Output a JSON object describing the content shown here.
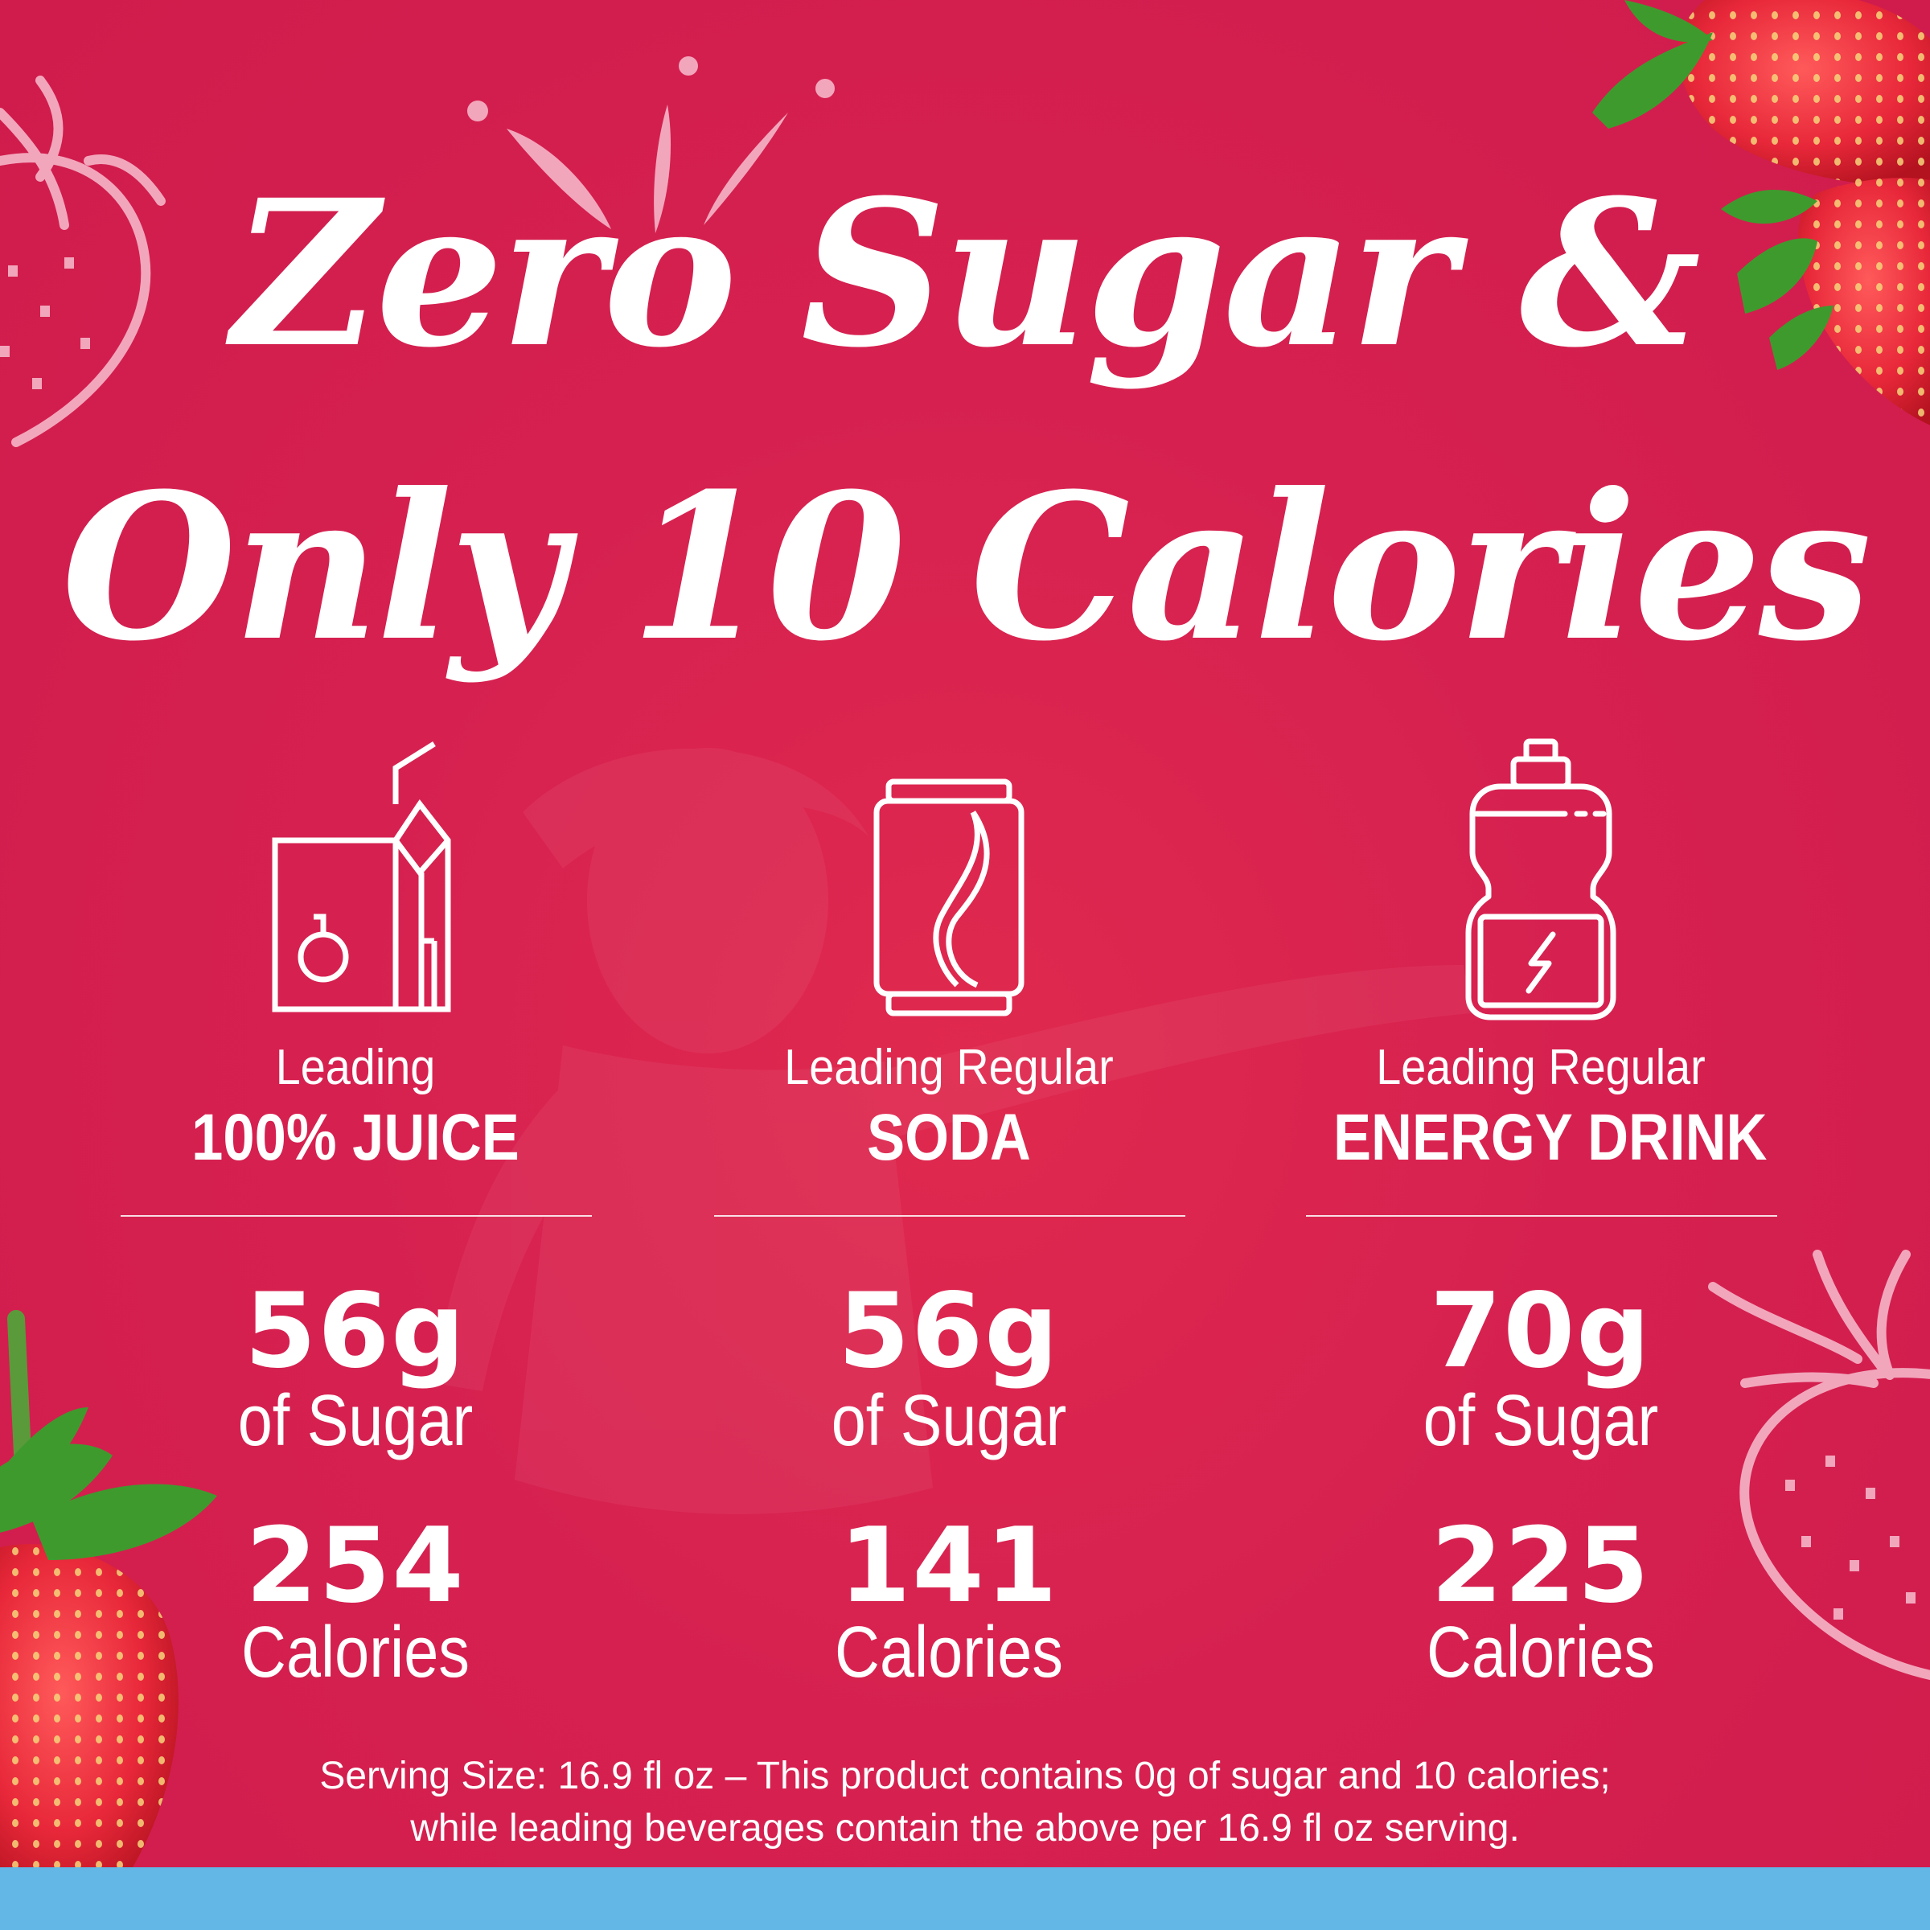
{
  "headline": {
    "line1": "Zero Sugar &",
    "line2": "Only 10 Calories"
  },
  "comparisons": [
    {
      "icon": "juice-box-icon",
      "label_top": "Leading",
      "label_bottom": "100% JUICE",
      "sugar_value": "56g",
      "sugar_unit": "of Sugar",
      "calorie_value": "254",
      "calorie_unit": "Calories"
    },
    {
      "icon": "soda-can-icon",
      "label_top": "Leading Regular",
      "label_bottom": "SODA",
      "sugar_value": "56g",
      "sugar_unit": "of Sugar",
      "calorie_value": "141",
      "calorie_unit": "Calories"
    },
    {
      "icon": "energy-drink-bottle-icon",
      "label_top": "Leading Regular",
      "label_bottom": "ENERGY DRINK",
      "sugar_value": "70g",
      "sugar_unit": "of Sugar",
      "calorie_value": "225",
      "calorie_unit": "Calories"
    }
  ],
  "footnote": {
    "line1": "Serving Size: 16.9 fl oz – This product contains 0g of sugar and 10 calories;",
    "line2": "while leading beverages contain the above per 16.9 fl oz serving."
  },
  "colors": {
    "background": "#d62150",
    "text": "#ffffff",
    "outline_strawberry": "#f2a6bc",
    "bottom_bar": "#62b7e6",
    "strawberry_red": "#e8283a",
    "leaf_green": "#3f9a2e"
  }
}
